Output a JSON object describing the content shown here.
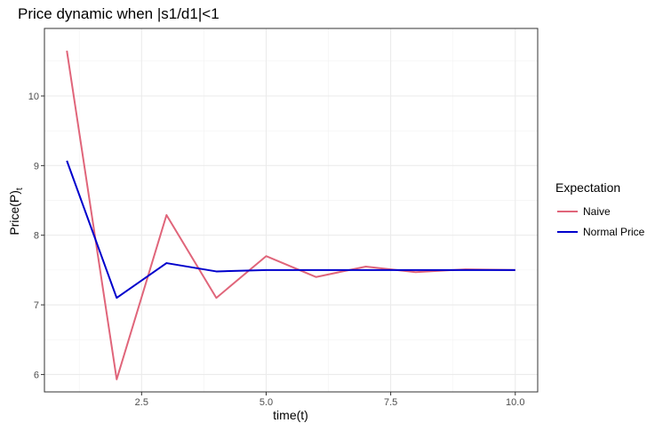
{
  "chart_data": {
    "type": "line",
    "title": "Price dynamic when |s1/d1|<1",
    "xlabel": "time(t)",
    "ylabel_main": "Price(P)",
    "ylabel_sub": "t",
    "xlim": [
      0.55,
      10.45
    ],
    "ylim": [
      5.75,
      10.97
    ],
    "x_ticks": [
      2.5,
      5.0,
      7.5,
      10.0
    ],
    "x_tick_labels": [
      "2.5",
      "5.0",
      "7.5",
      "10.0"
    ],
    "y_ticks": [
      6,
      7,
      8,
      9,
      10
    ],
    "y_tick_labels": [
      "6",
      "7",
      "8",
      "9",
      "10"
    ],
    "grid": true,
    "legend_title": "Expectation",
    "legend_position": "right",
    "x": [
      1,
      2,
      3,
      4,
      5,
      6,
      7,
      8,
      9,
      10
    ],
    "series": [
      {
        "name": "Naive",
        "color": "#e0657a",
        "values": [
          10.65,
          5.93,
          8.29,
          7.1,
          7.7,
          7.4,
          7.55,
          7.47,
          7.51,
          7.5
        ]
      },
      {
        "name": "Normal Price",
        "color": "#0000cc",
        "values": [
          9.07,
          7.1,
          7.6,
          7.48,
          7.5,
          7.5,
          7.5,
          7.5,
          7.5,
          7.5
        ]
      }
    ]
  }
}
